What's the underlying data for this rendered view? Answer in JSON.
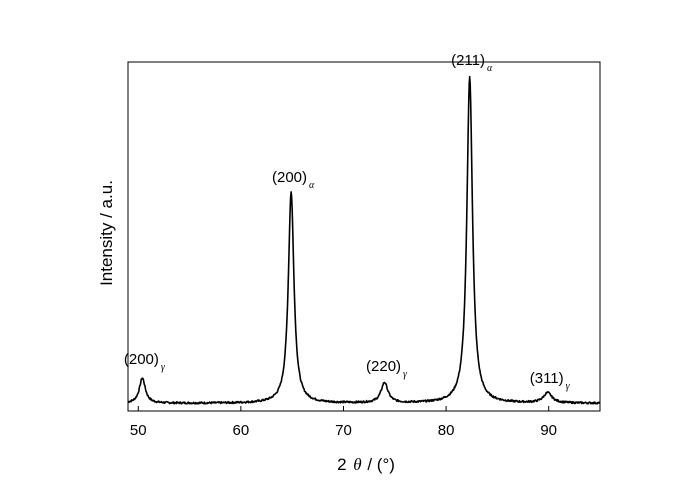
{
  "chart_data": {
    "type": "line",
    "title": "",
    "xlabel": {
      "prefix": "2",
      "symbol": "θ",
      "unit": "/ (°)"
    },
    "ylabel": "Intensity / a.u.",
    "xlim": [
      49,
      95
    ],
    "ylim": [
      0,
      100
    ],
    "xticks": [
      "50",
      "60",
      "70",
      "80",
      "90"
    ],
    "xtick_values": [
      50,
      60,
      70,
      80,
      90
    ],
    "grid": false,
    "legend": "none",
    "baseline": 2.2,
    "peaks": [
      {
        "label": "(200)",
        "phase": "γ",
        "x": 50.4,
        "height": 7.2,
        "width": 0.35
      },
      {
        "label": "(200)",
        "phase": "α",
        "x": 64.9,
        "height": 60.5,
        "width": 0.33
      },
      {
        "label": "(220)",
        "phase": "γ",
        "x": 74.0,
        "height": 5.8,
        "width": 0.4
      },
      {
        "label": "(211)",
        "phase": "α",
        "x": 82.3,
        "height": 93.5,
        "width": 0.33
      },
      {
        "label": "(311)",
        "phase": "γ",
        "x": 89.9,
        "height": 2.9,
        "width": 0.5
      }
    ],
    "color": "#000000"
  }
}
